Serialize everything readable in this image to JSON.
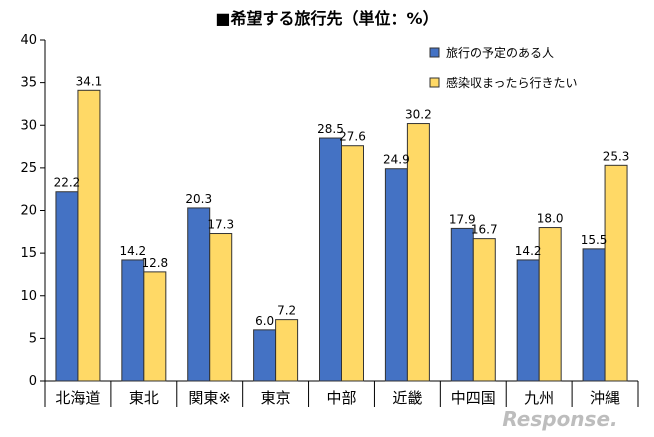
{
  "chart_data": {
    "type": "bar",
    "title": "■希望する旅行先（単位：%）",
    "xlabel": "",
    "ylabel": "",
    "ylim": [
      0,
      40
    ],
    "yticks": [
      0,
      5,
      10,
      15,
      20,
      25,
      30,
      35,
      40
    ],
    "grid": false,
    "legend": "top-right",
    "categories": [
      "北海道",
      "東北",
      "関東※",
      "東京",
      "中部",
      "近畿",
      "中四国",
      "九州",
      "沖縄"
    ],
    "series": [
      {
        "name": "旅行の予定のある人",
        "color": "#4472C4",
        "values": [
          22.2,
          14.2,
          20.3,
          6.0,
          28.5,
          24.9,
          17.9,
          14.2,
          15.5
        ],
        "labels": [
          "22.2",
          "14.2",
          "20.3",
          "6.0",
          "28.5",
          "24.9",
          "17.9",
          "14.2",
          "15.5"
        ]
      },
      {
        "name": "感染収まったら行きたい",
        "color": "#FFD966",
        "values": [
          34.1,
          12.8,
          17.3,
          7.2,
          27.6,
          30.2,
          16.7,
          18.0,
          25.3
        ],
        "labels": [
          "34.1",
          "12.8",
          "17.3",
          "7.2",
          "27.6",
          "30.2",
          "16.7",
          "18.0",
          "25.3"
        ]
      }
    ]
  },
  "watermark": "Response."
}
